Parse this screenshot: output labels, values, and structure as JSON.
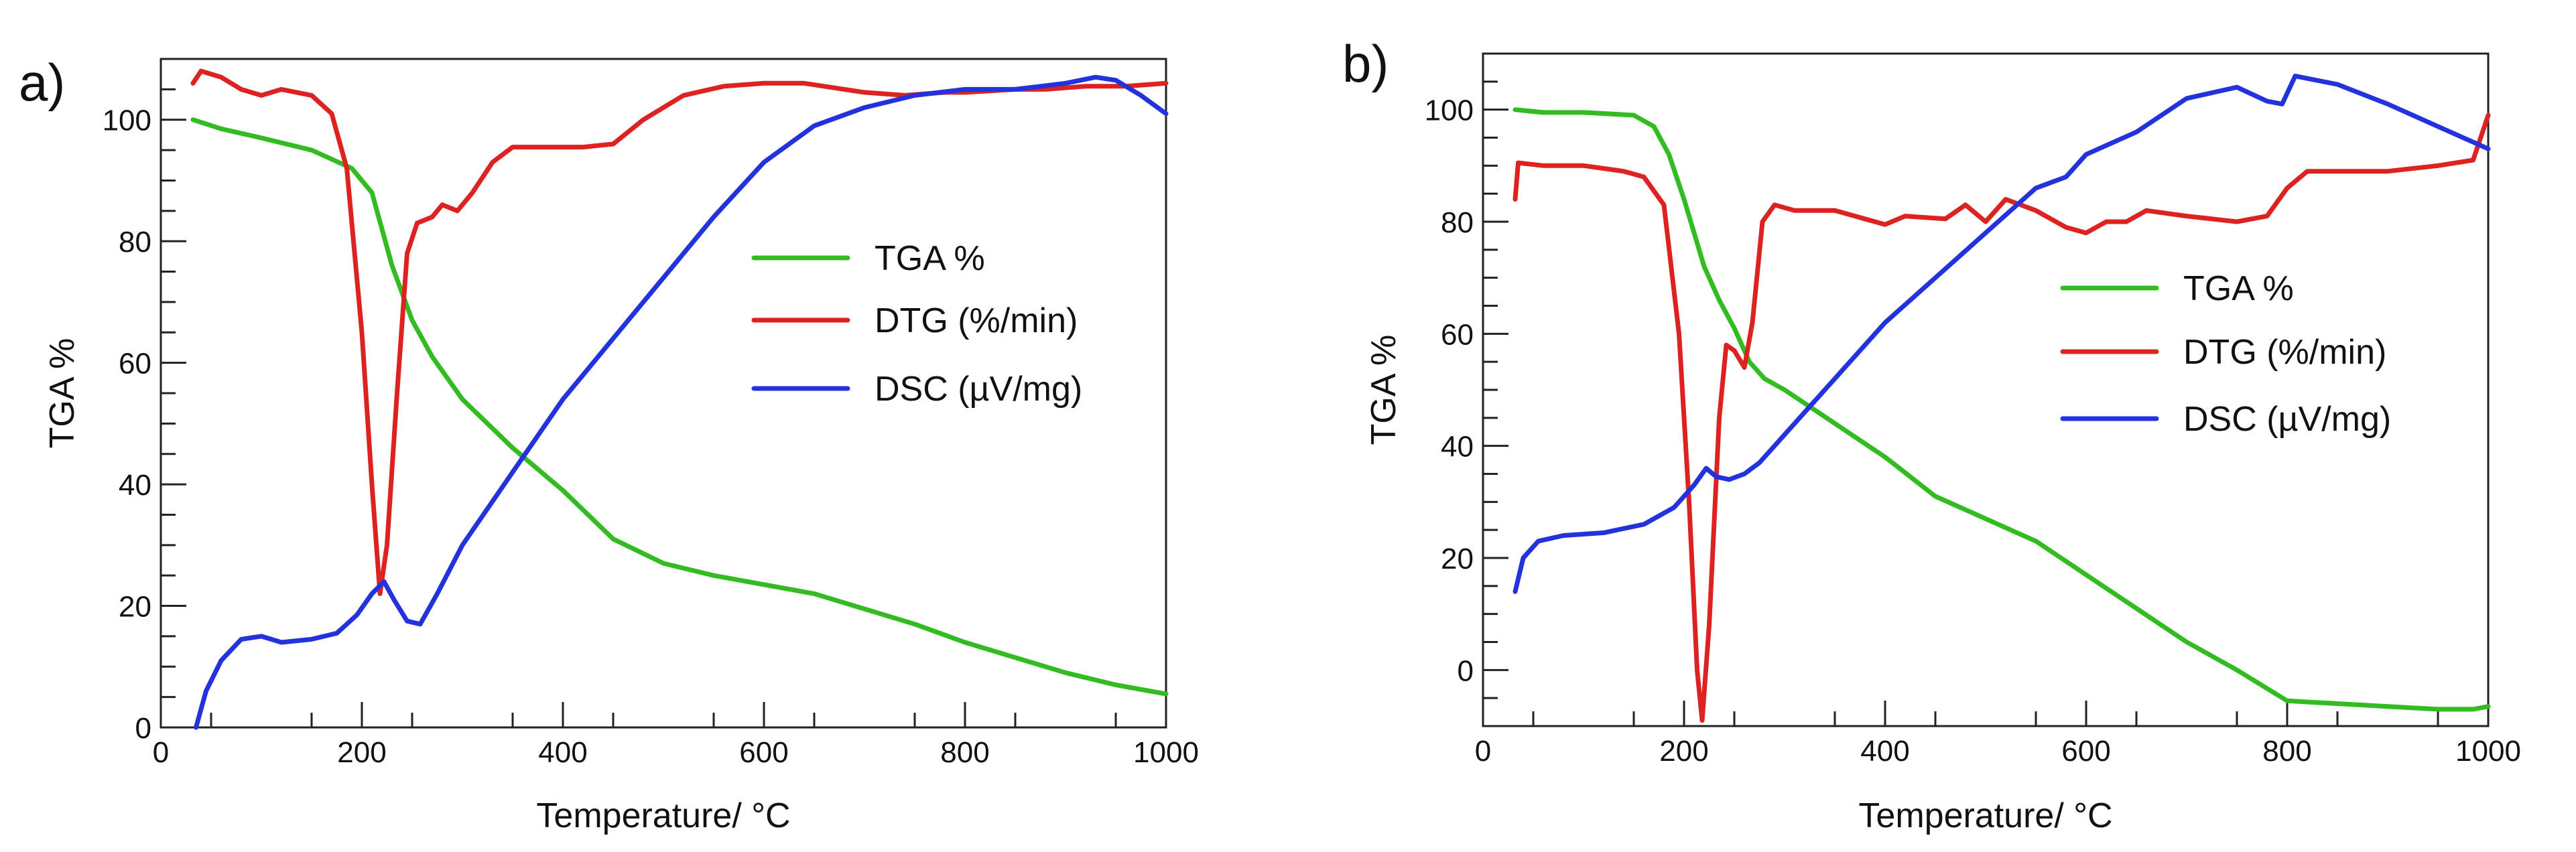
{
  "chart_data": [
    {
      "panel_label": "a)",
      "type": "line",
      "xlabel": "Temperature/ °C",
      "ylabel": "TGA %",
      "xlim": [
        0,
        1000
      ],
      "ylim": [
        0,
        110
      ],
      "xticks": [
        0,
        200,
        400,
        600,
        800,
        1000
      ],
      "yticks": [
        0,
        20,
        40,
        60,
        80,
        100
      ],
      "legend_position": "center-right",
      "series": [
        {
          "name": "TGA %",
          "color": "#33bb22",
          "points": [
            [
              32,
              100
            ],
            [
              60,
              98.5
            ],
            [
              100,
              97
            ],
            [
              150,
              95
            ],
            [
              190,
              92
            ],
            [
              210,
              88
            ],
            [
              230,
              76
            ],
            [
              250,
              67
            ],
            [
              270,
              61
            ],
            [
              300,
              54
            ],
            [
              350,
              46
            ],
            [
              400,
              39
            ],
            [
              450,
              31
            ],
            [
              500,
              27
            ],
            [
              550,
              25
            ],
            [
              600,
              23.5
            ],
            [
              650,
              22
            ],
            [
              700,
              19.5
            ],
            [
              750,
              17
            ],
            [
              800,
              14
            ],
            [
              850,
              11.5
            ],
            [
              900,
              9
            ],
            [
              950,
              7
            ],
            [
              1000,
              5.5
            ]
          ]
        },
        {
          "name": "DTG (%/min)",
          "color": "#dd2222",
          "points": [
            [
              32,
              106
            ],
            [
              40,
              108
            ],
            [
              60,
              107
            ],
            [
              80,
              105
            ],
            [
              100,
              104
            ],
            [
              120,
              105
            ],
            [
              150,
              104
            ],
            [
              170,
              101
            ],
            [
              185,
              92
            ],
            [
              200,
              65
            ],
            [
              210,
              40
            ],
            [
              218,
              22
            ],
            [
              225,
              30
            ],
            [
              235,
              55
            ],
            [
              245,
              78
            ],
            [
              255,
              83
            ],
            [
              270,
              84
            ],
            [
              280,
              86
            ],
            [
              295,
              85
            ],
            [
              310,
              88
            ],
            [
              330,
              93
            ],
            [
              350,
              95.5
            ],
            [
              380,
              95.5
            ],
            [
              420,
              95.5
            ],
            [
              450,
              96
            ],
            [
              480,
              100
            ],
            [
              520,
              104
            ],
            [
              560,
              105.5
            ],
            [
              600,
              106
            ],
            [
              640,
              106
            ],
            [
              680,
              105
            ],
            [
              700,
              104.5
            ],
            [
              740,
              104
            ],
            [
              780,
              104.5
            ],
            [
              800,
              104.5
            ],
            [
              850,
              105
            ],
            [
              880,
              105
            ],
            [
              920,
              105.5
            ],
            [
              960,
              105.5
            ],
            [
              1000,
              106
            ]
          ]
        },
        {
          "name": "DSC (µV/mg)",
          "color": "#2233dd",
          "points": [
            [
              35,
              0
            ],
            [
              45,
              6
            ],
            [
              60,
              11
            ],
            [
              80,
              14.5
            ],
            [
              100,
              15
            ],
            [
              120,
              14
            ],
            [
              150,
              14.5
            ],
            [
              175,
              15.5
            ],
            [
              195,
              18.5
            ],
            [
              210,
              22
            ],
            [
              222,
              24
            ],
            [
              232,
              21
            ],
            [
              245,
              17.5
            ],
            [
              258,
              17
            ],
            [
              275,
              22
            ],
            [
              300,
              30
            ],
            [
              350,
              42
            ],
            [
              400,
              54
            ],
            [
              450,
              64
            ],
            [
              500,
              74
            ],
            [
              550,
              84
            ],
            [
              600,
              93
            ],
            [
              650,
              99
            ],
            [
              700,
              102
            ],
            [
              750,
              104
            ],
            [
              800,
              105
            ],
            [
              850,
              105
            ],
            [
              900,
              106
            ],
            [
              930,
              107
            ],
            [
              950,
              106.5
            ],
            [
              975,
              104
            ],
            [
              1000,
              101
            ]
          ]
        }
      ]
    },
    {
      "panel_label": "b)",
      "type": "line",
      "xlabel": "Temperature/ °C",
      "ylabel": "TGA %",
      "xlim": [
        0,
        1000
      ],
      "ylim": [
        -10,
        110
      ],
      "xticks": [
        0,
        200,
        400,
        600,
        800,
        1000
      ],
      "yticks": [
        0,
        20,
        40,
        60,
        80,
        100
      ],
      "legend_position": "center-right",
      "series": [
        {
          "name": "TGA %",
          "color": "#33bb22",
          "points": [
            [
              32,
              100
            ],
            [
              60,
              99.5
            ],
            [
              100,
              99.5
            ],
            [
              150,
              99
            ],
            [
              170,
              97
            ],
            [
              185,
              92
            ],
            [
              200,
              84
            ],
            [
              220,
              72
            ],
            [
              235,
              66
            ],
            [
              250,
              61
            ],
            [
              265,
              55
            ],
            [
              280,
              52
            ],
            [
              300,
              50
            ],
            [
              350,
              44
            ],
            [
              400,
              38
            ],
            [
              450,
              31
            ],
            [
              500,
              27
            ],
            [
              550,
              23
            ],
            [
              600,
              17
            ],
            [
              650,
              11
            ],
            [
              700,
              5
            ],
            [
              750,
              0
            ],
            [
              800,
              -5.5
            ],
            [
              850,
              -6
            ],
            [
              900,
              -6.5
            ],
            [
              950,
              -7
            ],
            [
              985,
              -7
            ],
            [
              1000,
              -6.5
            ]
          ]
        },
        {
          "name": "DTG (%/min)",
          "color": "#dd2222",
          "points": [
            [
              32,
              84
            ],
            [
              35,
              90.5
            ],
            [
              60,
              90
            ],
            [
              100,
              90
            ],
            [
              140,
              89
            ],
            [
              160,
              88
            ],
            [
              180,
              83
            ],
            [
              195,
              60
            ],
            [
              205,
              30
            ],
            [
              213,
              0
            ],
            [
              218,
              -9
            ],
            [
              225,
              8
            ],
            [
              235,
              45
            ],
            [
              242,
              58
            ],
            [
              250,
              57
            ],
            [
              260,
              54
            ],
            [
              268,
              62
            ],
            [
              278,
              80
            ],
            [
              290,
              83
            ],
            [
              310,
              82
            ],
            [
              350,
              82
            ],
            [
              400,
              79.5
            ],
            [
              420,
              81
            ],
            [
              460,
              80.5
            ],
            [
              480,
              83
            ],
            [
              500,
              80
            ],
            [
              520,
              84
            ],
            [
              550,
              82
            ],
            [
              580,
              79
            ],
            [
              600,
              78
            ],
            [
              620,
              80
            ],
            [
              640,
              80
            ],
            [
              660,
              82
            ],
            [
              700,
              81
            ],
            [
              750,
              80
            ],
            [
              780,
              81
            ],
            [
              800,
              86
            ],
            [
              820,
              89
            ],
            [
              860,
              89
            ],
            [
              900,
              89
            ],
            [
              950,
              90
            ],
            [
              985,
              91
            ],
            [
              1000,
              99
            ]
          ]
        },
        {
          "name": "DSC (µV/mg)",
          "color": "#2233dd",
          "points": [
            [
              32,
              14
            ],
            [
              40,
              20
            ],
            [
              55,
              23
            ],
            [
              80,
              24
            ],
            [
              120,
              24.5
            ],
            [
              160,
              26
            ],
            [
              190,
              29
            ],
            [
              210,
              33
            ],
            [
              222,
              36
            ],
            [
              232,
              34.5
            ],
            [
              245,
              34
            ],
            [
              260,
              35
            ],
            [
              275,
              37
            ],
            [
              300,
              42
            ],
            [
              350,
              52
            ],
            [
              400,
              62
            ],
            [
              450,
              70
            ],
            [
              500,
              78
            ],
            [
              550,
              86
            ],
            [
              580,
              88
            ],
            [
              600,
              92
            ],
            [
              650,
              96
            ],
            [
              700,
              102
            ],
            [
              750,
              104
            ],
            [
              780,
              101.5
            ],
            [
              795,
              101
            ],
            [
              808,
              106
            ],
            [
              850,
              104.5
            ],
            [
              900,
              101
            ],
            [
              950,
              97
            ],
            [
              1000,
              93
            ]
          ]
        }
      ]
    }
  ]
}
